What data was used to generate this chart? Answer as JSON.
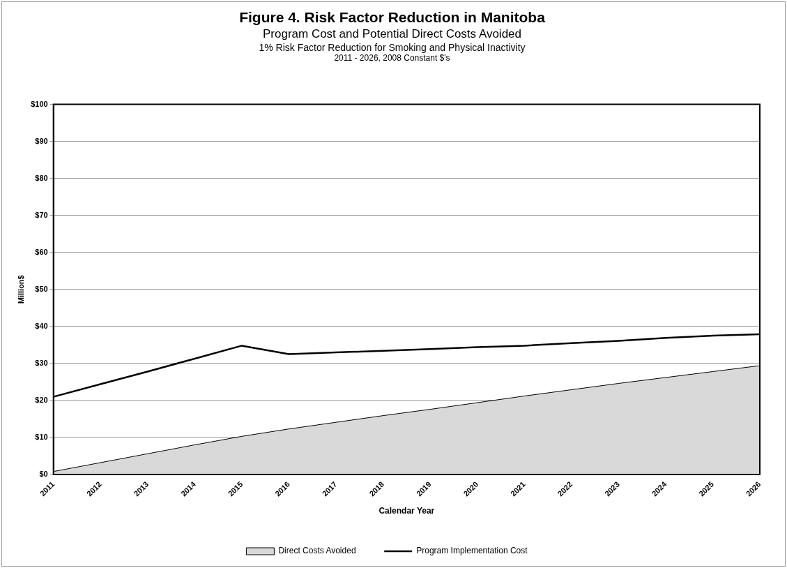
{
  "chart_data": {
    "type": "area",
    "title": "Figure 4. Risk Factor Reduction in Manitoba",
    "subtitle": "Program Cost and Potential Direct Costs Avoided",
    "annotations": [
      "1% Risk Factor Reduction for Smoking and Physical Inactivity",
      "2011 - 2026, 2008 Constant $'s"
    ],
    "xlabel": "Calendar Year",
    "ylabel": "Million$",
    "categories": [
      "2011",
      "2012",
      "2013",
      "2014",
      "2015",
      "2016",
      "2017",
      "2018",
      "2019",
      "2020",
      "2021",
      "2022",
      "2023",
      "2024",
      "2025",
      "2026"
    ],
    "series": [
      {
        "name": "Direct Costs Avoided",
        "type": "area",
        "color": "#d9d9d9",
        "values": [
          0.8,
          3.2,
          5.6,
          8.0,
          10.3,
          12.3,
          14.1,
          15.9,
          17.6,
          19.4,
          21.2,
          22.9,
          24.6,
          26.2,
          27.8,
          29.4
        ]
      },
      {
        "name": "Program Implementation Cost",
        "type": "line",
        "color": "#000000",
        "values": [
          21.0,
          24.4,
          27.8,
          31.3,
          34.8,
          32.5,
          33.0,
          33.4,
          33.9,
          34.4,
          34.8,
          35.5,
          36.1,
          36.9,
          37.5,
          37.9
        ]
      }
    ],
    "ylim": [
      0,
      100
    ],
    "yticks": [
      {
        "value": 0,
        "label": "$0"
      },
      {
        "value": 10,
        "label": "$10"
      },
      {
        "value": 20,
        "label": "$20"
      },
      {
        "value": 30,
        "label": "$30"
      },
      {
        "value": 40,
        "label": "$40"
      },
      {
        "value": 50,
        "label": "$50"
      },
      {
        "value": 60,
        "label": "$60"
      },
      {
        "value": 70,
        "label": "$70"
      },
      {
        "value": 80,
        "label": "$80"
      },
      {
        "value": 90,
        "label": "$90"
      },
      {
        "value": 100,
        "label": "$100"
      }
    ],
    "grid": "y",
    "legend": "bottom",
    "marker": "none",
    "line_style": "solid"
  }
}
